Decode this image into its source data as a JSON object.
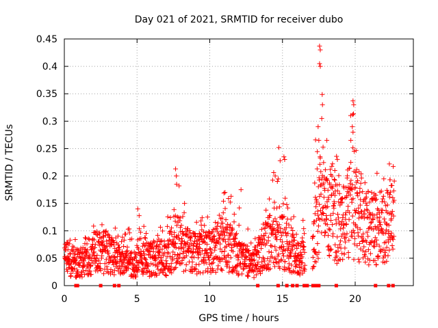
{
  "chart_data": {
    "type": "scatter",
    "title": "Day 021 of 2021, SRMTID for receiver dubo",
    "xlabel": "GPS time / hours",
    "ylabel": "SRMTID / TECUs",
    "xlim": [
      0,
      24
    ],
    "ylim": [
      0,
      0.45
    ],
    "xticks": [
      "0",
      "5",
      "10",
      "15",
      "20"
    ],
    "xtick_values": [
      0,
      5,
      10,
      15,
      20
    ],
    "yticks": [
      "0",
      "0.05",
      "0.1",
      "0.15",
      "0.2",
      "0.25",
      "0.3",
      "0.35",
      "0.4",
      "0.45"
    ],
    "ytick_values": [
      0,
      0.05,
      0.1,
      0.15,
      0.2,
      0.25,
      0.3,
      0.35,
      0.4,
      0.45
    ],
    "grid": true,
    "marker": "+",
    "color": "#ff0000",
    "activity_profile": [
      {
        "hour": 0.0,
        "typical": 0.05,
        "peak": 0.1
      },
      {
        "hour": 1.0,
        "typical": 0.04,
        "peak": 0.08
      },
      {
        "hour": 2.0,
        "typical": 0.06,
        "peak": 0.11
      },
      {
        "hour": 3.0,
        "typical": 0.06,
        "peak": 0.12
      },
      {
        "hour": 4.0,
        "typical": 0.04,
        "peak": 0.09
      },
      {
        "hour": 5.0,
        "typical": 0.04,
        "peak": 0.14
      },
      {
        "hour": 6.0,
        "typical": 0.05,
        "peak": 0.1
      },
      {
        "hour": 7.0,
        "typical": 0.05,
        "peak": 0.12
      },
      {
        "hour": 7.7,
        "typical": 0.08,
        "peak": 0.21
      },
      {
        "hour": 9.0,
        "typical": 0.06,
        "peak": 0.12
      },
      {
        "hour": 10.0,
        "typical": 0.06,
        "peak": 0.13
      },
      {
        "hour": 11.0,
        "typical": 0.08,
        "peak": 0.17
      },
      {
        "hour": 12.0,
        "typical": 0.05,
        "peak": 0.16
      },
      {
        "hour": 13.0,
        "typical": 0.04,
        "peak": 0.09
      },
      {
        "hour": 14.0,
        "typical": 0.08,
        "peak": 0.15
      },
      {
        "hour": 14.7,
        "typical": 0.09,
        "peak": 0.25
      },
      {
        "hour": 15.5,
        "typical": 0.07,
        "peak": 0.15
      },
      {
        "hour": 16.3,
        "typical": 0.05,
        "peak": 0.13
      },
      {
        "hour": 17.0,
        "typical": 0.05,
        "peak": 0.1
      },
      {
        "hour": 17.5,
        "typical": 0.15,
        "peak": 0.43
      },
      {
        "hour": 18.0,
        "typical": 0.13,
        "peak": 0.3
      },
      {
        "hour": 19.0,
        "typical": 0.11,
        "peak": 0.22
      },
      {
        "hour": 19.8,
        "typical": 0.14,
        "peak": 0.33
      },
      {
        "hour": 20.5,
        "typical": 0.11,
        "peak": 0.19
      },
      {
        "hour": 21.5,
        "typical": 0.1,
        "peak": 0.18
      },
      {
        "hour": 22.5,
        "typical": 0.12,
        "peak": 0.22
      }
    ],
    "outliers": [
      {
        "x": 7.65,
        "y": 0.213
      },
      {
        "x": 7.7,
        "y": 0.2
      },
      {
        "x": 7.72,
        "y": 0.185
      },
      {
        "x": 14.75,
        "y": 0.252
      },
      {
        "x": 15.1,
        "y": 0.235
      },
      {
        "x": 15.15,
        "y": 0.23
      },
      {
        "x": 17.55,
        "y": 0.437
      },
      {
        "x": 17.6,
        "y": 0.43
      },
      {
        "x": 17.55,
        "y": 0.405
      },
      {
        "x": 17.6,
        "y": 0.4
      },
      {
        "x": 17.75,
        "y": 0.33
      },
      {
        "x": 17.7,
        "y": 0.305
      },
      {
        "x": 17.45,
        "y": 0.29
      },
      {
        "x": 17.5,
        "y": 0.265
      },
      {
        "x": 19.85,
        "y": 0.337
      },
      {
        "x": 19.9,
        "y": 0.33
      },
      {
        "x": 19.8,
        "y": 0.29
      },
      {
        "x": 19.85,
        "y": 0.28
      },
      {
        "x": 18.05,
        "y": 0.265
      },
      {
        "x": 19.7,
        "y": 0.265
      },
      {
        "x": 22.35,
        "y": 0.222
      },
      {
        "x": 21.5,
        "y": 0.205
      },
      {
        "x": 18.6,
        "y": 0.21
      },
      {
        "x": 11.05,
        "y": 0.17
      },
      {
        "x": 12.15,
        "y": 0.175
      },
      {
        "x": 5.05,
        "y": 0.14
      },
      {
        "x": 14.5,
        "y": 0.2
      }
    ],
    "zero_values_at_hours": [
      0.8,
      0.9,
      2.5,
      3.45,
      3.75,
      13.3,
      14.7,
      15.3,
      15.7,
      16.0,
      16.5,
      16.7,
      17.1,
      17.3,
      17.5,
      18.7,
      21.4,
      22.3,
      22.6
    ]
  }
}
